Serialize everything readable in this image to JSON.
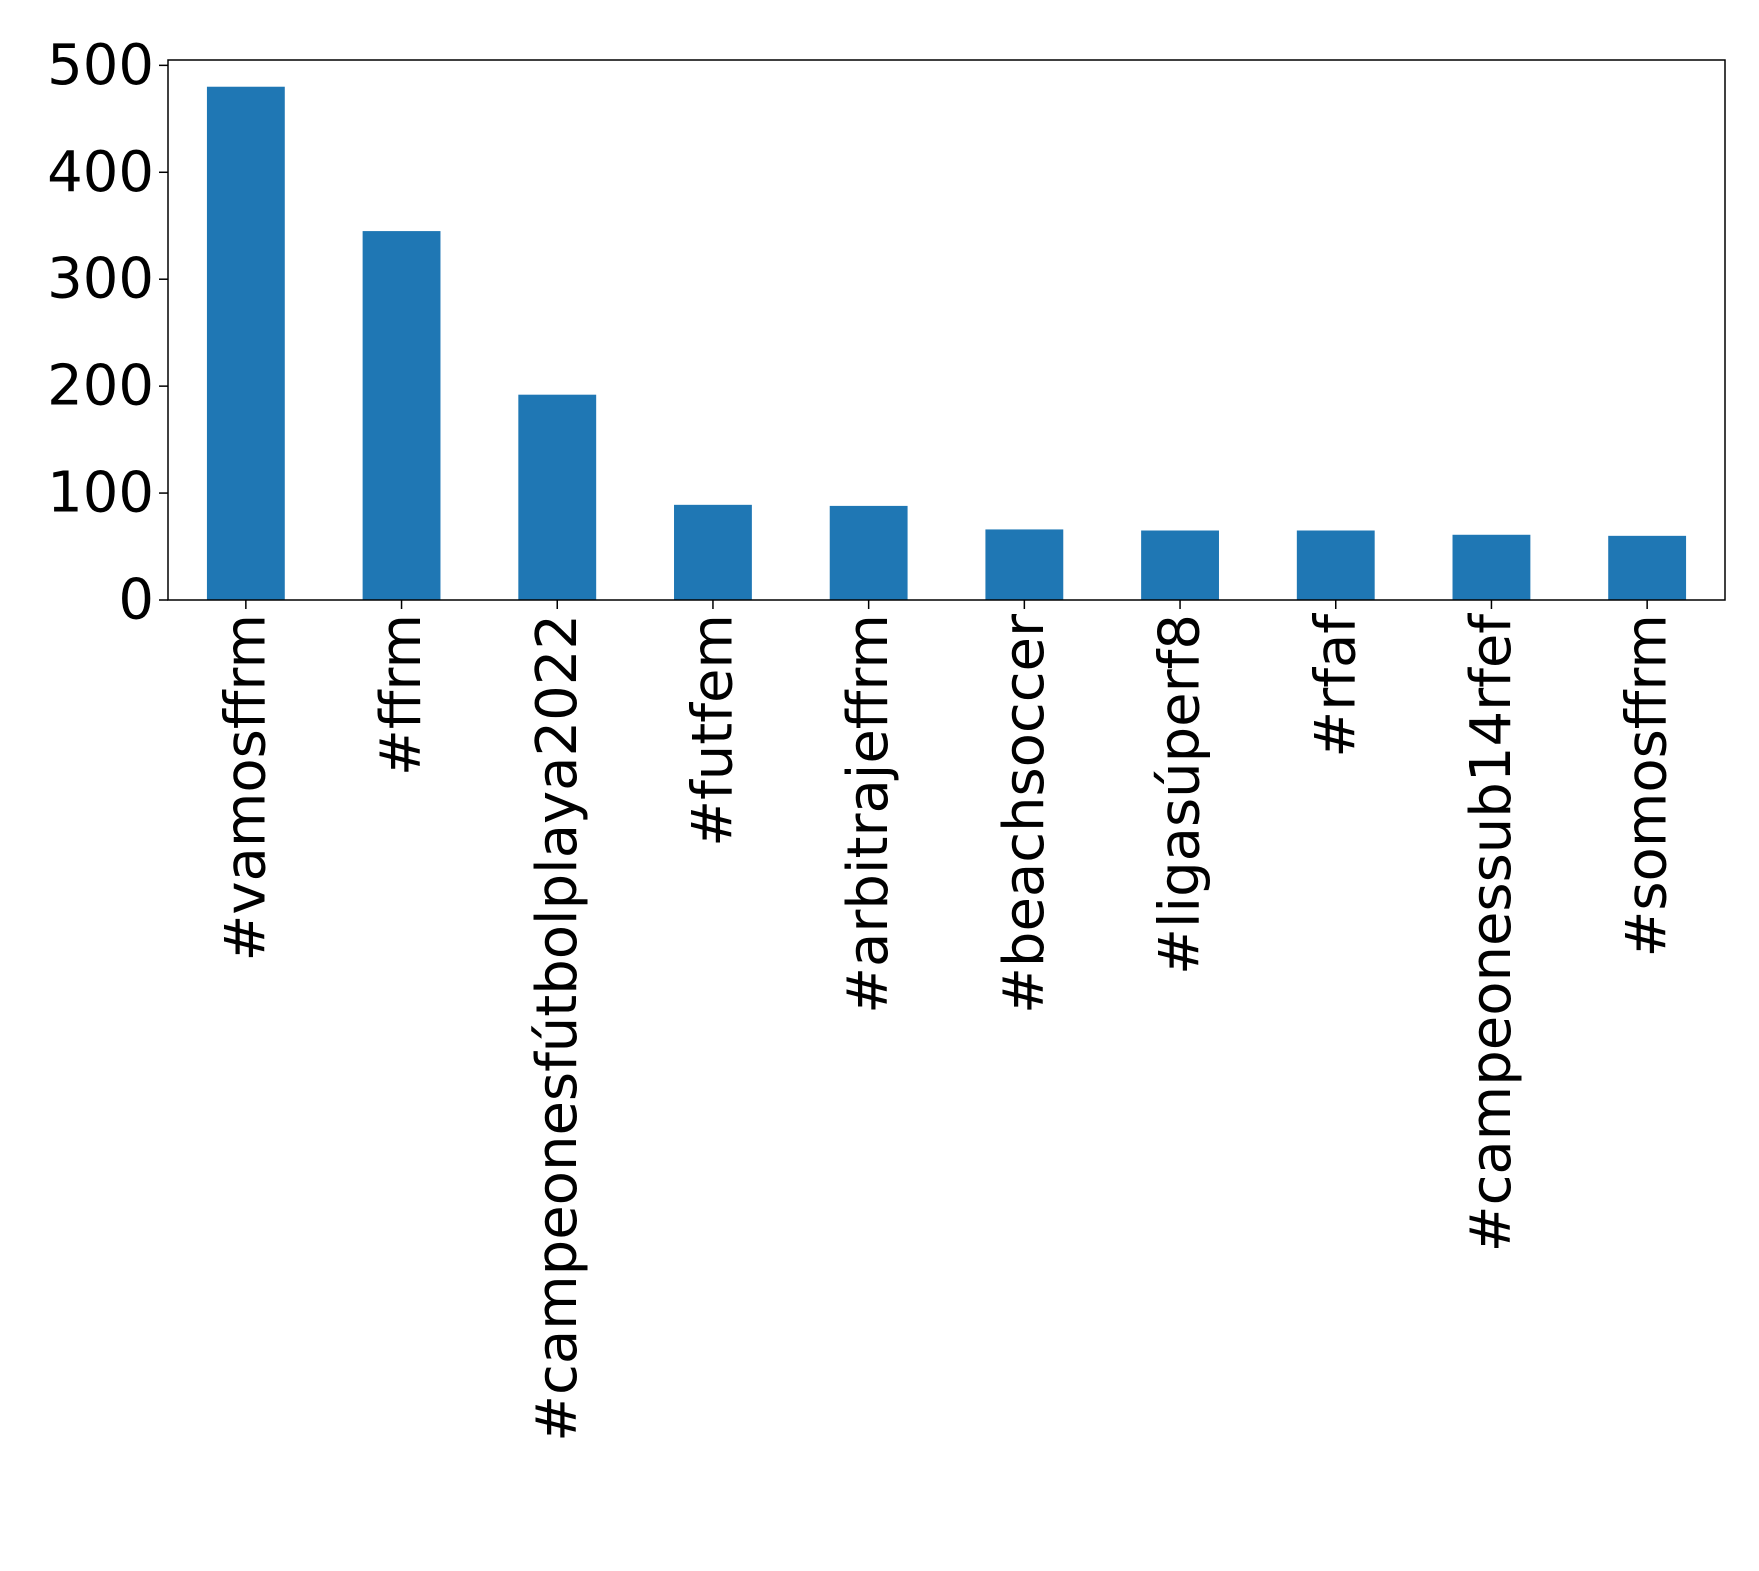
{
  "chart_data": {
    "type": "bar",
    "title": "",
    "xlabel": "",
    "ylabel": "",
    "categories": [
      "#vamosffrm",
      "#ffrm",
      "#campeonesfútbolplaya2022",
      "#futfem",
      "#arbitrajeffrm",
      "#beachsoccer",
      "#ligasúperf8",
      "#rfaf",
      "#campeonessub14rfef",
      "#somosffrm"
    ],
    "values": [
      480,
      345,
      192,
      89,
      88,
      66,
      65,
      65,
      61,
      60
    ],
    "ylim": [
      0,
      505
    ],
    "yticks": [
      0,
      100,
      200,
      300,
      400,
      500
    ],
    "ytick_labels": [
      "0",
      "100",
      "200",
      "300",
      "400",
      "500"
    ],
    "bar_color": "#1f77b4",
    "grid": false,
    "legend": "none"
  }
}
